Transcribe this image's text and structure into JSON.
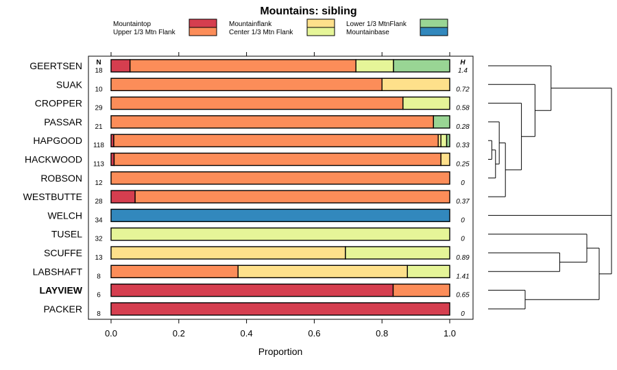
{
  "chart_data": {
    "type": "bar",
    "stacked": "horizontal",
    "title": "Mountains: sibling",
    "xlabel": "Proportion",
    "ylabel": "",
    "xlim": [
      0,
      1
    ],
    "x_ticks": [
      "0.0",
      "0.2",
      "0.4",
      "0.6",
      "0.8",
      "1.0"
    ],
    "x_tick_values": [
      0,
      0.2,
      0.4,
      0.6,
      0.8,
      1.0
    ],
    "n_header": "N",
    "h_header": "H",
    "legend": [
      {
        "key": "mountaintop",
        "label": "Mountaintop",
        "color": "#d53e4f"
      },
      {
        "key": "upper",
        "label": "Upper 1/3 Mtn Flank",
        "color": "#fc8d59"
      },
      {
        "key": "flank",
        "label": "Mountainflank",
        "color": "#fee08b"
      },
      {
        "key": "center",
        "label": "Center 1/3 Mtn Flank",
        "color": "#e6f598"
      },
      {
        "key": "lower",
        "label": "Lower 1/3 MtnFlank",
        "color": "#99d594"
      },
      {
        "key": "base",
        "label": "Mountainbase",
        "color": "#3288bd"
      }
    ],
    "rows": [
      {
        "name": "GEERTSEN",
        "n": "18",
        "h": "1.4",
        "bold": false,
        "segments": [
          {
            "key": "mountaintop",
            "value": 0.056
          },
          {
            "key": "upper",
            "value": 0.667
          },
          {
            "key": "center",
            "value": 0.111
          },
          {
            "key": "lower",
            "value": 0.166
          }
        ]
      },
      {
        "name": "SUAK",
        "n": "10",
        "h": "0.72",
        "bold": false,
        "segments": [
          {
            "key": "upper",
            "value": 0.8
          },
          {
            "key": "flank",
            "value": 0.2
          }
        ]
      },
      {
        "name": "CROPPER",
        "n": "29",
        "h": "0.58",
        "bold": false,
        "segments": [
          {
            "key": "upper",
            "value": 0.862
          },
          {
            "key": "center",
            "value": 0.138
          }
        ]
      },
      {
        "name": "PASSAR",
        "n": "21",
        "h": "0.28",
        "bold": false,
        "segments": [
          {
            "key": "upper",
            "value": 0.952
          },
          {
            "key": "lower",
            "value": 0.048
          }
        ]
      },
      {
        "name": "HAPGOOD",
        "n": "118",
        "h": "0.33",
        "bold": false,
        "segments": [
          {
            "key": "mountaintop",
            "value": 0.008
          },
          {
            "key": "upper",
            "value": 0.958
          },
          {
            "key": "flank",
            "value": 0.008
          },
          {
            "key": "center",
            "value": 0.017
          },
          {
            "key": "lower",
            "value": 0.009
          }
        ]
      },
      {
        "name": "HACKWOOD",
        "n": "113",
        "h": "0.25",
        "bold": false,
        "segments": [
          {
            "key": "mountaintop",
            "value": 0.009
          },
          {
            "key": "upper",
            "value": 0.965
          },
          {
            "key": "flank",
            "value": 0.026
          }
        ]
      },
      {
        "name": "ROBSON",
        "n": "12",
        "h": "0",
        "bold": false,
        "segments": [
          {
            "key": "upper",
            "value": 1.0
          }
        ]
      },
      {
        "name": "WESTBUTTE",
        "n": "28",
        "h": "0.37",
        "bold": false,
        "segments": [
          {
            "key": "mountaintop",
            "value": 0.071
          },
          {
            "key": "upper",
            "value": 0.929
          }
        ]
      },
      {
        "name": "WELCH",
        "n": "34",
        "h": "0",
        "bold": false,
        "segments": [
          {
            "key": "base",
            "value": 1.0
          }
        ]
      },
      {
        "name": "TUSEL",
        "n": "32",
        "h": "0",
        "bold": false,
        "segments": [
          {
            "key": "center",
            "value": 1.0
          }
        ]
      },
      {
        "name": "SCUFFE",
        "n": "13",
        "h": "0.89",
        "bold": false,
        "segments": [
          {
            "key": "flank",
            "value": 0.692
          },
          {
            "key": "center",
            "value": 0.308
          }
        ]
      },
      {
        "name": "LABSHAFT",
        "n": "8",
        "h": "1.41",
        "bold": false,
        "segments": [
          {
            "key": "upper",
            "value": 0.375
          },
          {
            "key": "flank",
            "value": 0.5
          },
          {
            "key": "center",
            "value": 0.125
          }
        ]
      },
      {
        "name": "LAYVIEW",
        "n": "6",
        "h": "0.65",
        "bold": true,
        "segments": [
          {
            "key": "mountaintop",
            "value": 0.833
          },
          {
            "key": "upper",
            "value": 0.167
          }
        ]
      },
      {
        "name": "PACKER",
        "n": "8",
        "h": "0",
        "bold": false,
        "segments": [
          {
            "key": "mountaintop",
            "value": 1.0
          }
        ]
      }
    ],
    "dendrogram": {
      "leaves": [
        "GEERTSEN",
        "SUAK",
        "CROPPER",
        "PASSAR",
        "HAPGOOD",
        "HACKWOOD",
        "ROBSON",
        "WESTBUTTE",
        "WELCH",
        "TUSEL",
        "SCUFFE",
        "LABSHAFT",
        "LAYVIEW",
        "PACKER"
      ],
      "merges": [
        {
          "a": "HAPGOOD",
          "b": "HACKWOOD",
          "height": 0.03
        },
        {
          "a": 1,
          "b": "ROBSON",
          "height": 0.06
        },
        {
          "a": 2,
          "b": "PASSAR",
          "height": 0.09
        },
        {
          "a": 3,
          "b": "WESTBUTTE",
          "height": 0.14
        },
        {
          "a": 4,
          "b": "CROPPER",
          "height": 0.27
        },
        {
          "a": 5,
          "b": "SUAK",
          "height": 0.38
        },
        {
          "a": 6,
          "b": "GEERTSEN",
          "height": 0.51
        },
        {
          "a": "SCUFFE",
          "b": "LABSHAFT",
          "height": 0.58
        },
        {
          "a": 8,
          "b": "TUSEL",
          "height": 0.8
        },
        {
          "a": "LAYVIEW",
          "b": "PACKER",
          "height": 0.3
        },
        {
          "a": 9,
          "b": 10,
          "height": 0.9
        },
        {
          "a": 11,
          "b": "WELCH",
          "height": 1.0
        },
        {
          "a": 7,
          "b": 12,
          "height": 1.0
        }
      ]
    }
  }
}
